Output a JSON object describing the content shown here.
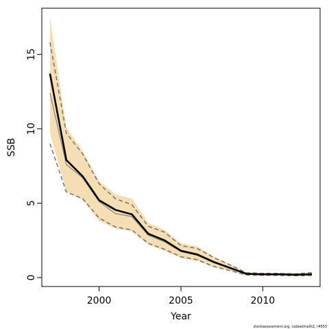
{
  "chart_data": {
    "type": "line",
    "title": "",
    "xlabel": "Year",
    "ylabel": "SSB",
    "xlim": [
      1996.5,
      2013.5
    ],
    "ylim": [
      -0.6,
      18.1
    ],
    "xticks": [
      2000,
      2005,
      2010
    ],
    "yticks": [
      0,
      5,
      10,
      15
    ],
    "grid": false,
    "legend": "none",
    "x": [
      1997,
      1998,
      1999,
      2000,
      2001,
      2002,
      2003,
      2004,
      2005,
      2006,
      2007,
      2008,
      2009,
      2010,
      2011,
      2012,
      2013
    ],
    "series": [
      {
        "role": "band_upper",
        "values": [
          17.5,
          10.1,
          8.5,
          6.5,
          5.6,
          5.3,
          3.7,
          3.2,
          2.3,
          2.1,
          1.4,
          0.9,
          0.35,
          0.32,
          0.31,
          0.28,
          0.38
        ],
        "color": "#f5deb3"
      },
      {
        "role": "band_lower",
        "values": [
          9.7,
          5.8,
          5.2,
          3.8,
          3.3,
          3.1,
          2.2,
          1.8,
          1.3,
          1.1,
          0.7,
          0.45,
          0.15,
          0.13,
          0.13,
          0.1,
          0.12
        ],
        "color": "#f5deb3"
      },
      {
        "role": "estimate",
        "values": [
          13.7,
          7.9,
          6.8,
          5.2,
          4.55,
          4.25,
          2.95,
          2.5,
          1.8,
          1.55,
          1.05,
          0.65,
          0.25,
          0.22,
          0.22,
          0.19,
          0.22
        ],
        "color": "#000000"
      },
      {
        "role": "comparison_estimate",
        "values": [
          12.4,
          7.6,
          6.7,
          5.1,
          4.3,
          4.1,
          2.85,
          2.4,
          1.75,
          1.5,
          1.0,
          0.62,
          0.23,
          0.2,
          0.2,
          0.17,
          0.2
        ],
        "color": "#808080"
      },
      {
        "role": "upper_interval_dashed",
        "values": [
          15.8,
          9.7,
          8.3,
          6.3,
          5.3,
          4.9,
          3.45,
          3.05,
          2.15,
          1.95,
          1.35,
          0.85,
          0.32,
          0.29,
          0.28,
          0.25,
          0.33
        ],
        "color": "#707070"
      },
      {
        "role": "lower_interval_dashed",
        "values": [
          9.0,
          5.75,
          5.3,
          4.0,
          3.4,
          3.2,
          2.3,
          1.9,
          1.4,
          1.2,
          0.75,
          0.47,
          0.17,
          0.15,
          0.14,
          0.12,
          0.14
        ],
        "color": "#707070"
      }
    ]
  },
  "credit": "stockassessment.org, codeatmathZ, r4553"
}
